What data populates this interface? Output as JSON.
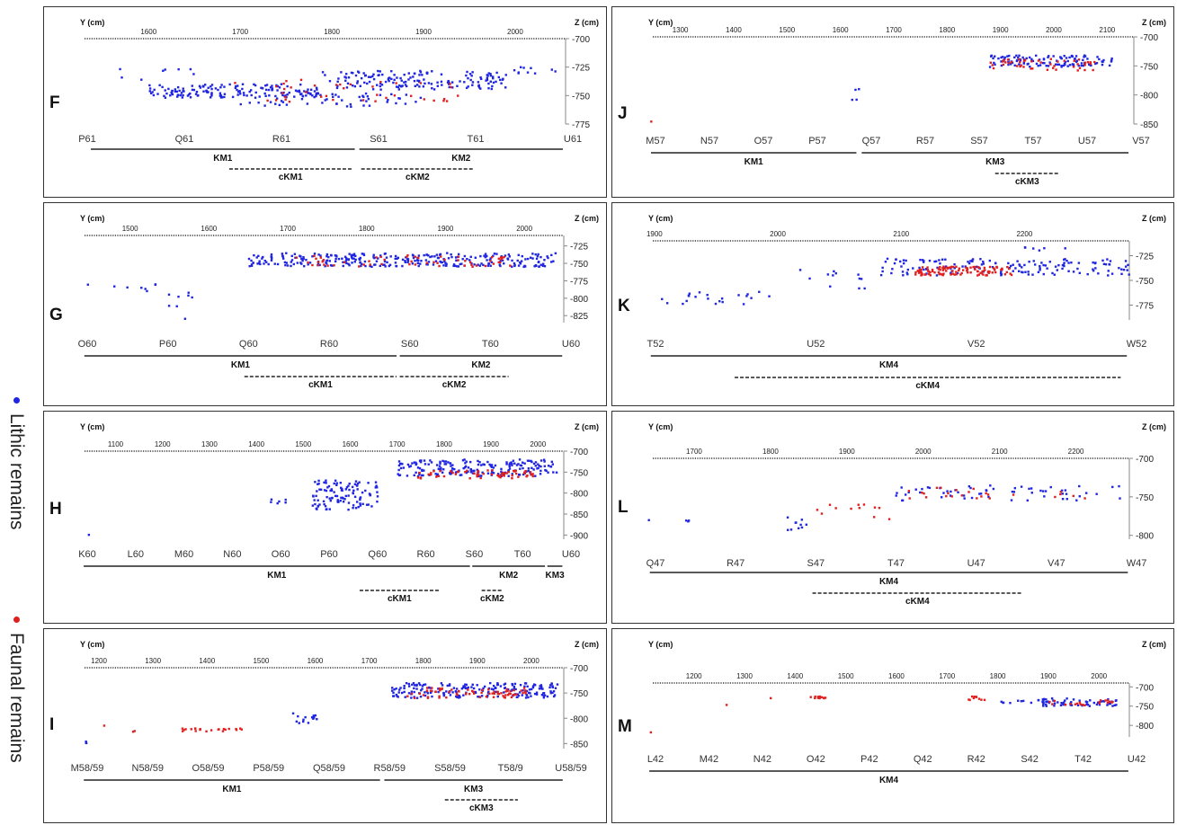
{
  "legend": {
    "lithic": {
      "label": "Lithic remains",
      "color": "#1f25e0"
    },
    "faunal": {
      "label": "Faunal remains",
      "color": "#e0201f"
    }
  },
  "chart_data": [
    {
      "type": "scatter",
      "panel": "F",
      "y_axis_label": "Y (cm)",
      "z_axis_label": "Z (cm)",
      "y_ticks": [
        "1600",
        "1700",
        "1800",
        "1900",
        "2000"
      ],
      "y_tick_values": [
        1600,
        1700,
        1800,
        1900,
        2000
      ],
      "y_range": [
        1535,
        2055
      ],
      "z_ticks": [
        "-700",
        "-725",
        "-750",
        "-775"
      ],
      "z_tick_values": [
        -700,
        -725,
        -750,
        -775
      ],
      "z_range": [
        -700,
        -775
      ],
      "squares": [
        "P61",
        "Q61",
        "R61",
        "S61",
        "T61",
        "U61"
      ],
      "clusters": [
        {
          "y": [
            1600,
            1790
          ],
          "z": [
            -740,
            -752
          ],
          "n": 150,
          "series": "lithic"
        },
        {
          "y": [
            1790,
            1990
          ],
          "z": [
            -728,
            -745
          ],
          "n": 160,
          "series": "lithic"
        },
        {
          "y": [
            1700,
            1900
          ],
          "z": [
            -748,
            -760
          ],
          "n": 60,
          "series": "lithic"
        },
        {
          "y": [
            1690,
            1940
          ],
          "z": [
            -736,
            -756
          ],
          "n": 40,
          "series": "faunal"
        },
        {
          "y": [
            1540,
            1650
          ],
          "z": [
            -722,
            -738
          ],
          "n": 8,
          "series": "lithic"
        },
        {
          "y": [
            1990,
            2050
          ],
          "z": [
            -724,
            -732
          ],
          "n": 10,
          "series": "lithic"
        }
      ],
      "levels": [
        {
          "label": "KM1",
          "y": [
            1537,
            1825
          ]
        },
        {
          "label": "KM2",
          "y": [
            1830,
            2052
          ]
        }
      ],
      "clusters_c": [
        {
          "label": "cKM1",
          "y": [
            1688,
            1822
          ]
        },
        {
          "label": "cKM2",
          "y": [
            1832,
            1955
          ]
        }
      ]
    },
    {
      "type": "scatter",
      "panel": "J",
      "y_axis_label": "Y (cm)",
      "z_axis_label": "Z (cm)",
      "y_ticks": [
        "1300",
        "1400",
        "1500",
        "1600",
        "1700",
        "1800",
        "1900",
        "2000",
        "2100"
      ],
      "y_tick_values": [
        1300,
        1400,
        1500,
        1600,
        1700,
        1800,
        1900,
        2000,
        2100
      ],
      "y_range": [
        1240,
        2150
      ],
      "z_ticks": [
        "-700",
        "-750",
        "-800",
        "-850"
      ],
      "z_tick_values": [
        -700,
        -750,
        -800,
        -850
      ],
      "z_range": [
        -700,
        -850
      ],
      "squares": [
        "M57",
        "N57",
        "O57",
        "P57",
        "Q57",
        "R57",
        "S57",
        "T57",
        "U57",
        "V57"
      ],
      "clusters": [
        {
          "y": [
            1880,
            2110
          ],
          "z": [
            -732,
            -752
          ],
          "n": 120,
          "series": "lithic"
        },
        {
          "y": [
            1880,
            2080
          ],
          "z": [
            -738,
            -758
          ],
          "n": 45,
          "series": "faunal"
        },
        {
          "y": [
            1620,
            1640
          ],
          "z": [
            -785,
            -815
          ],
          "n": 4,
          "series": "lithic"
        },
        {
          "y": [
            1245,
            1250
          ],
          "z": [
            -840,
            -846
          ],
          "n": 1,
          "series": "faunal"
        }
      ],
      "levels": [
        {
          "label": "KM1",
          "y": [
            1245,
            1630
          ]
        },
        {
          "label": "KM3",
          "y": [
            1640,
            2140
          ]
        }
      ],
      "clusters_c": [
        {
          "label": "cKM3",
          "y": [
            1890,
            2010
          ]
        }
      ]
    },
    {
      "type": "scatter",
      "panel": "G",
      "y_axis_label": "Y (cm)",
      "z_axis_label": "Z (cm)",
      "y_ticks": [
        "1500",
        "1600",
        "1700",
        "1800",
        "1900",
        "2000"
      ],
      "y_tick_values": [
        1500,
        1600,
        1700,
        1800,
        1900,
        2000
      ],
      "y_range": [
        1440,
        2050
      ],
      "z_ticks": [
        "-725",
        "-750",
        "-775",
        "-800",
        "-825"
      ],
      "z_tick_values": [
        -725,
        -750,
        -775,
        -800,
        -825
      ],
      "z_range": [
        -710,
        -835
      ],
      "squares": [
        "O60",
        "P60",
        "Q60",
        "R60",
        "S60",
        "T60",
        "U60"
      ],
      "clusters": [
        {
          "y": [
            1650,
            2040
          ],
          "z": [
            -735,
            -755
          ],
          "n": 300,
          "series": "lithic"
        },
        {
          "y": [
            1700,
            1990
          ],
          "z": [
            -738,
            -755
          ],
          "n": 55,
          "series": "faunal"
        },
        {
          "y": [
            1440,
            1545
          ],
          "z": [
            -780,
            -790
          ],
          "n": 8,
          "series": "lithic"
        },
        {
          "y": [
            1545,
            1580
          ],
          "z": [
            -790,
            -830
          ],
          "n": 8,
          "series": "lithic"
        }
      ],
      "levels": [
        {
          "label": "KM1",
          "y": [
            1442,
            1838
          ]
        },
        {
          "label": "KM2",
          "y": [
            1842,
            2048
          ]
        }
      ],
      "clusters_c": [
        {
          "label": "cKM1",
          "y": [
            1645,
            1838
          ]
        },
        {
          "label": "cKM2",
          "y": [
            1842,
            1980
          ]
        }
      ]
    },
    {
      "type": "scatter",
      "panel": "K",
      "y_axis_label": "Y (cm)",
      "z_axis_label": "Z (cm)",
      "y_ticks": [
        "1900",
        "2000",
        "2100",
        "2200"
      ],
      "y_tick_values": [
        1900,
        2000,
        2100,
        2200
      ],
      "y_range": [
        1895,
        2285
      ],
      "z_ticks": [
        "-725",
        "-750",
        "-775"
      ],
      "z_tick_values": [
        -725,
        -750,
        -775
      ],
      "z_range": [
        -710,
        -790
      ],
      "squares": [
        "T52",
        "U52",
        "V52",
        "W52"
      ],
      "clusters": [
        {
          "y": [
            1905,
            2000
          ],
          "z": [
            -760,
            -775
          ],
          "n": 22,
          "series": "lithic"
        },
        {
          "y": [
            2000,
            2075
          ],
          "z": [
            -735,
            -760
          ],
          "n": 12,
          "series": "lithic"
        },
        {
          "y": [
            2080,
            2285
          ],
          "z": [
            -728,
            -745
          ],
          "n": 150,
          "series": "lithic"
        },
        {
          "y": [
            2110,
            2190
          ],
          "z": [
            -736,
            -745
          ],
          "n": 110,
          "series": "faunal"
        },
        {
          "y": [
            2200,
            2240
          ],
          "z": [
            -716,
            -720
          ],
          "n": 6,
          "series": "lithic"
        }
      ],
      "levels": [
        {
          "label": "KM4",
          "y": [
            1897,
            2283
          ]
        }
      ],
      "clusters_c": [
        {
          "label": "cKM4",
          "y": [
            1965,
            2278
          ]
        }
      ]
    },
    {
      "type": "scatter",
      "panel": "H",
      "y_axis_label": "Y (cm)",
      "z_axis_label": "Z (cm)",
      "y_ticks": [
        "1100",
        "1200",
        "1300",
        "1400",
        "1500",
        "1600",
        "1700",
        "1800",
        "1900",
        "2000"
      ],
      "y_tick_values": [
        1100,
        1200,
        1300,
        1400,
        1500,
        1600,
        1700,
        1800,
        1900,
        2000
      ],
      "y_range": [
        1030,
        2055
      ],
      "z_ticks": [
        "-700",
        "-750",
        "-800",
        "-850",
        "-900"
      ],
      "z_tick_values": [
        -700,
        -750,
        -800,
        -850,
        -900
      ],
      "z_range": [
        -700,
        -910
      ],
      "squares": [
        "K60",
        "L60",
        "M60",
        "N60",
        "O60",
        "P60",
        "Q60",
        "R60",
        "S60",
        "T60",
        "U60"
      ],
      "clusters": [
        {
          "y": [
            1700,
            2040
          ],
          "z": [
            -720,
            -760
          ],
          "n": 200,
          "series": "lithic"
        },
        {
          "y": [
            1730,
            1990
          ],
          "z": [
            -745,
            -765
          ],
          "n": 60,
          "series": "faunal"
        },
        {
          "y": [
            1520,
            1660
          ],
          "z": [
            -770,
            -840
          ],
          "n": 110,
          "series": "lithic"
        },
        {
          "y": [
            1430,
            1470
          ],
          "z": [
            -815,
            -825
          ],
          "n": 6,
          "series": "lithic"
        },
        {
          "y": [
            1040,
            1045
          ],
          "z": [
            -895,
            -900
          ],
          "n": 1,
          "series": "lithic"
        }
      ],
      "levels": [
        {
          "label": "KM1",
          "y": [
            1032,
            1855
          ]
        },
        {
          "label": "KM2",
          "y": [
            1860,
            2015
          ]
        },
        {
          "label": "KM3",
          "y": [
            2020,
            2052
          ]
        }
      ],
      "clusters_c": [
        {
          "label": "cKM1",
          "y": [
            1620,
            1790
          ]
        },
        {
          "label": "cKM2",
          "y": [
            1880,
            1925
          ]
        }
      ]
    },
    {
      "type": "scatter",
      "panel": "L",
      "y_axis_label": "Y (cm)",
      "z_axis_label": "Z (cm)",
      "y_ticks": [
        "1700",
        "1800",
        "1900",
        "2000",
        "2100",
        "2200"
      ],
      "y_tick_values": [
        1700,
        1800,
        1900,
        2000,
        2100,
        2200
      ],
      "y_range": [
        1640,
        2270
      ],
      "z_ticks": [
        "-700",
        "-750",
        "-800"
      ],
      "z_tick_values": [
        -700,
        -750,
        -800
      ],
      "z_range": [
        -700,
        -805
      ],
      "squares": [
        "Q47",
        "R47",
        "S47",
        "T47",
        "U47",
        "V47",
        "W47"
      ],
      "clusters": [
        {
          "y": [
            1640,
            1700
          ],
          "z": [
            -780,
            -782
          ],
          "n": 4,
          "series": "lithic"
        },
        {
          "y": [
            1820,
            1850
          ],
          "z": [
            -775,
            -795
          ],
          "n": 10,
          "series": "lithic"
        },
        {
          "y": [
            1850,
            1960
          ],
          "z": [
            -760,
            -780
          ],
          "n": 12,
          "series": "faunal"
        },
        {
          "y": [
            1960,
            2270
          ],
          "z": [
            -735,
            -755
          ],
          "n": 60,
          "series": "lithic"
        },
        {
          "y": [
            1980,
            2220
          ],
          "z": [
            -738,
            -755
          ],
          "n": 25,
          "series": "faunal"
        }
      ],
      "levels": [
        {
          "label": "KM4",
          "y": [
            1642,
            2268
          ]
        }
      ],
      "clusters_c": [
        {
          "label": "cKM4",
          "y": [
            1855,
            2130
          ]
        }
      ]
    },
    {
      "type": "scatter",
      "panel": "I",
      "y_axis_label": "Y (cm)",
      "z_axis_label": "Z (cm)",
      "y_ticks": [
        "1200",
        "1300",
        "1400",
        "1500",
        "1600",
        "1700",
        "1800",
        "1900",
        "2000"
      ],
      "y_tick_values": [
        1200,
        1300,
        1400,
        1500,
        1600,
        1700,
        1800,
        1900,
        2000
      ],
      "y_range": [
        1170,
        2060
      ],
      "z_ticks": [
        "-700",
        "-750",
        "-800",
        "-850"
      ],
      "z_tick_values": [
        -700,
        -750,
        -800,
        -850
      ],
      "z_range": [
        -700,
        -860
      ],
      "squares": [
        "M58/59",
        "N58/59",
        "O58/59",
        "P58/59",
        "Q58/59",
        "R58/59",
        "S58/59",
        "T58/9",
        "U58/59"
      ],
      "clusters": [
        {
          "y": [
            1740,
            2050
          ],
          "z": [
            -730,
            -760
          ],
          "n": 200,
          "series": "lithic"
        },
        {
          "y": [
            1770,
            1990
          ],
          "z": [
            -740,
            -760
          ],
          "n": 70,
          "series": "faunal"
        },
        {
          "y": [
            1550,
            1610
          ],
          "z": [
            -790,
            -810
          ],
          "n": 14,
          "series": "lithic"
        },
        {
          "y": [
            1340,
            1480
          ],
          "z": [
            -820,
            -826
          ],
          "n": 22,
          "series": "faunal"
        },
        {
          "y": [
            1175,
            1180
          ],
          "z": [
            -845,
            -855
          ],
          "n": 3,
          "series": "lithic"
        },
        {
          "y": [
            1190,
            1270
          ],
          "z": [
            -810,
            -835
          ],
          "n": 3,
          "series": "faunal"
        }
      ],
      "levels": [
        {
          "label": "KM1",
          "y": [
            1172,
            1720
          ]
        },
        {
          "label": "KM3",
          "y": [
            1728,
            2058
          ]
        }
      ],
      "clusters_c": [
        {
          "label": "cKM3",
          "y": [
            1840,
            1975
          ]
        }
      ]
    },
    {
      "type": "scatter",
      "panel": "M",
      "y_axis_label": "Y (cm)",
      "z_axis_label": "Z (cm)",
      "y_ticks": [
        "1200",
        "1300",
        "1400",
        "1500",
        "1600",
        "1700",
        "1800",
        "1900",
        "2000"
      ],
      "y_tick_values": [
        1200,
        1300,
        1400,
        1500,
        1600,
        1700,
        1800,
        1900,
        2000
      ],
      "y_range": [
        1110,
        2060
      ],
      "z_ticks": [
        "-700",
        "-750",
        "-800"
      ],
      "z_tick_values": [
        -700,
        -750,
        -800
      ],
      "z_range": [
        -690,
        -830
      ],
      "squares": [
        "L42",
        "M42",
        "N42",
        "O42",
        "P42",
        "Q42",
        "R42",
        "S42",
        "T42",
        "U42"
      ],
      "clusters": [
        {
          "y": [
            1115,
            1120
          ],
          "z": [
            -815,
            -820
          ],
          "n": 1,
          "series": "faunal"
        },
        {
          "y": [
            1260,
            1270
          ],
          "z": [
            -745,
            -750
          ],
          "n": 1,
          "series": "faunal"
        },
        {
          "y": [
            1350,
            1360
          ],
          "z": [
            -725,
            -730
          ],
          "n": 1,
          "series": "faunal"
        },
        {
          "y": [
            1420,
            1460
          ],
          "z": [
            -725,
            -730
          ],
          "n": 12,
          "series": "faunal"
        },
        {
          "y": [
            1740,
            1780
          ],
          "z": [
            -725,
            -735
          ],
          "n": 10,
          "series": "faunal"
        },
        {
          "y": [
            1780,
            1880
          ],
          "z": [
            -735,
            -742
          ],
          "n": 8,
          "series": "lithic"
        },
        {
          "y": [
            1880,
            2040
          ],
          "z": [
            -730,
            -750
          ],
          "n": 60,
          "series": "lithic"
        },
        {
          "y": [
            1900,
            2030
          ],
          "z": [
            -735,
            -748
          ],
          "n": 20,
          "series": "faunal"
        }
      ],
      "levels": [
        {
          "label": "KM4",
          "y": [
            1112,
            2058
          ]
        }
      ],
      "clusters_c": []
    }
  ]
}
